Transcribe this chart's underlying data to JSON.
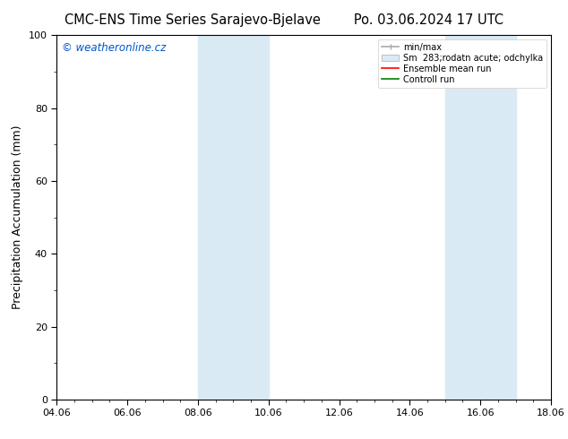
{
  "title_left": "CMC-ENS Time Series Sarajevo-Bjelave",
  "title_right": "Po. 03.06.2024 17 UTC",
  "ylabel": "Precipitation Accumulation (mm)",
  "ylim": [
    0,
    100
  ],
  "yticks": [
    0,
    20,
    40,
    60,
    80,
    100
  ],
  "xtick_labels": [
    "04.06",
    "06.06",
    "08.06",
    "10.06",
    "12.06",
    "14.06",
    "16.06",
    "18.06"
  ],
  "xtick_positions": [
    0,
    2,
    4,
    6,
    8,
    10,
    12,
    14
  ],
  "xlim": [
    0,
    14
  ],
  "shaded_bands": [
    {
      "x_start": 4.0,
      "x_end": 6.0,
      "color": "#daeaf5"
    },
    {
      "x_start": 11.0,
      "x_end": 13.0,
      "color": "#daeaf5"
    }
  ],
  "watermark_text": "© weatheronline.cz",
  "watermark_color": "#0055cc",
  "legend_entries": [
    {
      "label": "min/max",
      "type": "hline",
      "color": "#aaaaaa"
    },
    {
      "label": "Sm  283;rodatn acute; odchylka",
      "type": "patch",
      "color": "#daeaf5",
      "edgecolor": "#aaaaaa"
    },
    {
      "label": "Ensemble mean run",
      "type": "line",
      "color": "red"
    },
    {
      "label": "Controll run",
      "type": "line",
      "color": "green"
    }
  ],
  "background_color": "#ffffff",
  "title_fontsize": 10.5,
  "ylabel_fontsize": 9,
  "tick_fontsize": 8,
  "legend_fontsize": 7,
  "watermark_fontsize": 8.5
}
